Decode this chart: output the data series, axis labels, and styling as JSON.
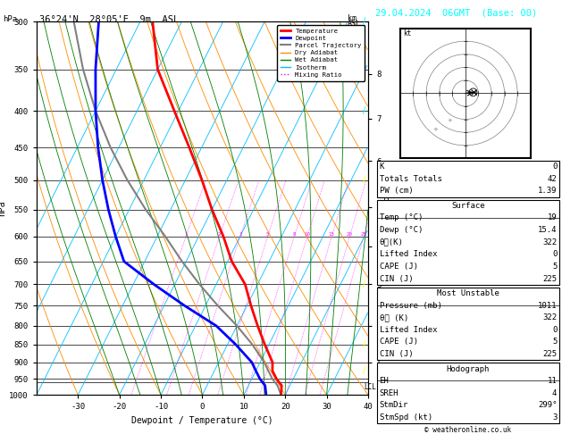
{
  "title_left": "36°24'N  28°05'E  9m  ASL",
  "title_right": "29.04.2024  06GMT  (Base: 00)",
  "xlabel": "Dewpoint / Temperature (°C)",
  "ylabel_left": "hPa",
  "ylabel_right": "Mixing Ratio (g/kg)",
  "pressure_levels": [
    300,
    350,
    400,
    450,
    500,
    550,
    600,
    650,
    700,
    750,
    800,
    850,
    900,
    950,
    1000
  ],
  "temp_profile": {
    "pressure": [
      1000,
      970,
      950,
      925,
      900,
      850,
      800,
      750,
      700,
      650,
      600,
      550,
      500,
      450,
      400,
      350,
      300
    ],
    "temp": [
      19,
      18,
      16,
      14,
      13,
      9,
      5,
      1,
      -3,
      -9,
      -14,
      -20,
      -26,
      -33,
      -41,
      -50,
      -57
    ]
  },
  "dewp_profile": {
    "pressure": [
      1000,
      970,
      950,
      925,
      900,
      850,
      800,
      750,
      700,
      650,
      600,
      550,
      500,
      450,
      400,
      350,
      300
    ],
    "temp": [
      15.4,
      14,
      12,
      10,
      8,
      2,
      -5,
      -15,
      -25,
      -35,
      -40,
      -45,
      -50,
      -55,
      -60,
      -65,
      -70
    ]
  },
  "parcel_profile": {
    "pressure": [
      1000,
      970,
      950,
      925,
      900,
      850,
      800,
      750,
      700,
      650,
      600,
      550,
      500,
      450,
      400,
      350,
      300
    ],
    "temp": [
      19,
      17,
      15,
      13,
      11,
      6,
      0,
      -7,
      -14,
      -21,
      -28,
      -36,
      -44,
      -52,
      -60,
      -68,
      -76
    ]
  },
  "km_ticks": {
    "values": [
      1,
      2,
      3,
      4,
      5,
      6,
      7,
      8
    ],
    "pressures": [
      900,
      800,
      700,
      620,
      545,
      470,
      410,
      355
    ]
  },
  "lcl_pressure": 960,
  "skew": 45,
  "p_min": 300,
  "p_max": 1000,
  "t_min": -40,
  "t_max": 40,
  "colors": {
    "temperature": "#ff0000",
    "dewpoint": "#0000ff",
    "parcel": "#808080",
    "dry_adiabat": "#ff8c00",
    "wet_adiabat": "#008000",
    "isotherm": "#00bfff",
    "mixing_ratio": "#ff00ff",
    "background": "#ffffff",
    "grid": "#000000"
  },
  "legend_labels": [
    "Temperature",
    "Dewpoint",
    "Parcel Trajectory",
    "Dry Adiabat",
    "Wet Adiabat",
    "Isotherm",
    "Mixing Ratio"
  ],
  "mixing_ratios": [
    1,
    2,
    3,
    5,
    8,
    10,
    15,
    20,
    25
  ],
  "info_rows_top": [
    [
      "K",
      "0"
    ],
    [
      "Totals Totals",
      "42"
    ],
    [
      "PW (cm)",
      "1.39"
    ]
  ],
  "info_surface_header": "Surface",
  "info_surface_rows": [
    [
      "Temp (°C)",
      "19"
    ],
    [
      "Dewp (°C)",
      "15.4"
    ],
    [
      "θᴇ(K)",
      "322"
    ],
    [
      "Lifted Index",
      "0"
    ],
    [
      "CAPE (J)",
      "5"
    ],
    [
      "CIN (J)",
      "225"
    ]
  ],
  "info_mu_header": "Most Unstable",
  "info_mu_rows": [
    [
      "Pressure (mb)",
      "1011"
    ],
    [
      "θᴇ (K)",
      "322"
    ],
    [
      "Lifted Index",
      "0"
    ],
    [
      "CAPE (J)",
      "5"
    ],
    [
      "CIN (J)",
      "225"
    ]
  ],
  "info_hodo_header": "Hodograph",
  "info_hodo_rows": [
    [
      "EH",
      "11"
    ],
    [
      "SREH",
      "4"
    ],
    [
      "StmDir",
      "299°"
    ],
    [
      "StmSpd (kt)",
      "3"
    ]
  ],
  "copyright": "© weatheronline.co.uk"
}
